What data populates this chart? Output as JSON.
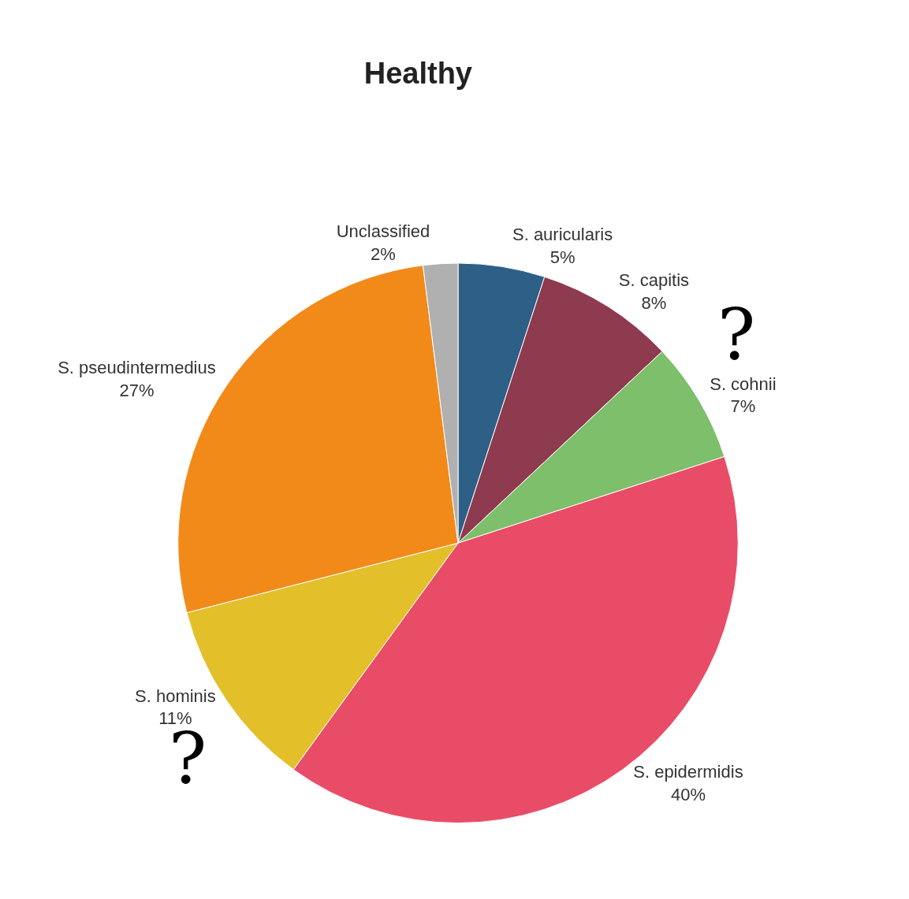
{
  "chart_data": {
    "type": "pie",
    "title": "Healthy",
    "categories": [
      "S. auricularis",
      "S. capitis",
      "S. cohnii",
      "S. epidermidis",
      "S. hominis",
      "S. pseudintermedius",
      "Unclassified"
    ],
    "values": [
      5,
      8,
      7,
      40,
      11,
      27,
      2
    ],
    "value_labels": [
      "5%",
      "8%",
      "7%",
      "40%",
      "11%",
      "27%",
      "2%"
    ],
    "colors": [
      "#2e5f86",
      "#8e3a4f",
      "#7dbf6a",
      "#e94c66",
      "#e3bf2a",
      "#f28a1a",
      "#b0b0b0"
    ],
    "annotations": [
      "?",
      "?"
    ],
    "legend": false
  }
}
